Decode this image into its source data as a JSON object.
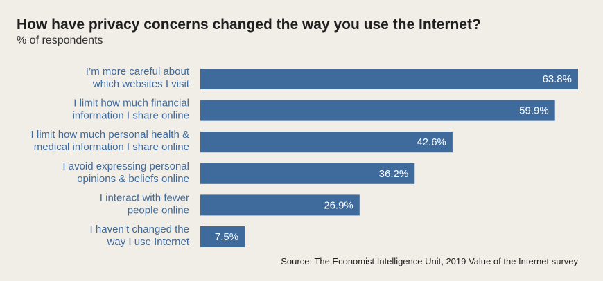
{
  "chart_data": {
    "type": "bar",
    "orientation": "horizontal",
    "title": "How have privacy concerns changed the way you use the Internet?",
    "subtitle": "% of respondents",
    "categories": [
      [
        "I’m more careful about",
        "which websites I visit"
      ],
      [
        "I limit how much financial",
        "information I share online"
      ],
      [
        "I limit how much personal health &",
        "medical information I share online"
      ],
      [
        "I avoid expressing personal",
        "opinions & beliefs online"
      ],
      [
        "I interact with fewer",
        "people online"
      ],
      [
        "I haven’t changed the",
        "way I use Internet"
      ]
    ],
    "values": [
      63.8,
      59.9,
      42.6,
      36.2,
      26.9,
      7.5
    ],
    "value_labels": [
      "63.8%",
      "59.9%",
      "42.6%",
      "36.2%",
      "26.9%",
      "7.5%"
    ],
    "unit": "%",
    "xlim": [
      0,
      63.8
    ],
    "bar_color": "#3f6a9c",
    "grid": false,
    "legend": "none",
    "source": "Source: The Economist Intelligence Unit, 2019 Value of the Internet survey"
  }
}
